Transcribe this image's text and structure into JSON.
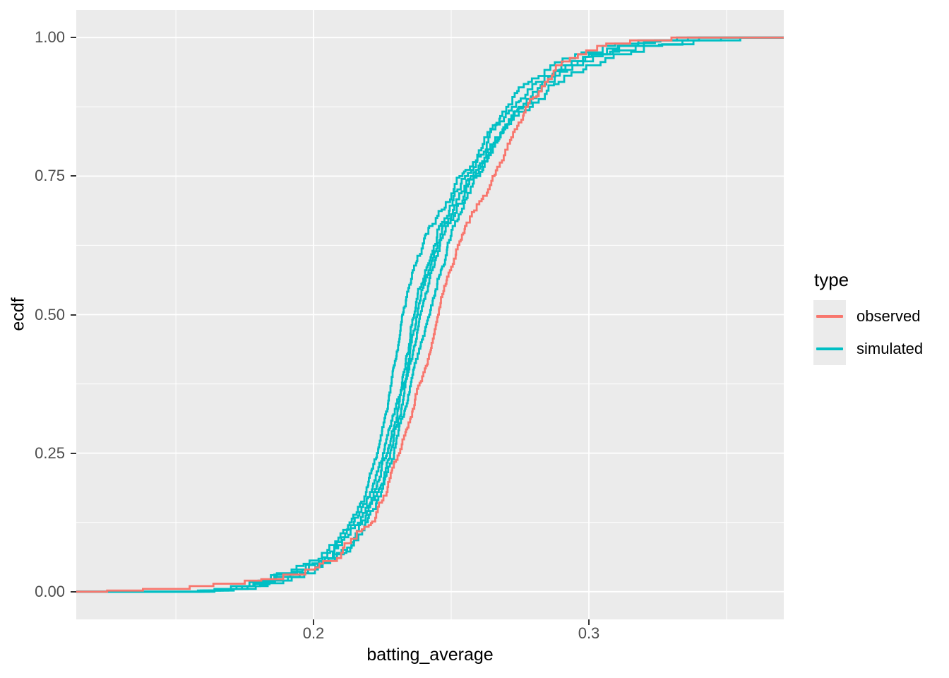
{
  "chart_data": {
    "type": "line",
    "style": "ecdf-step",
    "title": "",
    "x_axis": {
      "label": "batting_average",
      "major_ticks": [
        {
          "value": 0.2,
          "label": "0.2"
        },
        {
          "value": 0.3,
          "label": "0.3"
        }
      ],
      "minor_ticks": [
        0.15,
        0.25,
        0.35
      ]
    },
    "y_axis": {
      "label": "ecdf",
      "major_ticks": [
        {
          "value": 0.0,
          "label": "0.00"
        },
        {
          "value": 0.25,
          "label": "0.25"
        },
        {
          "value": 0.5,
          "label": "0.50"
        },
        {
          "value": 0.75,
          "label": "0.75"
        },
        {
          "value": 1.0,
          "label": "1.00"
        }
      ],
      "minor_ticks": [
        0.125,
        0.375,
        0.625,
        0.875
      ]
    },
    "xlim": [
      0.1138,
      0.3708
    ],
    "ylim": [
      -0.05,
      1.05
    ],
    "legend": {
      "title": "type",
      "position": "right",
      "entries": [
        {
          "label": "observed",
          "color": "#F8766D"
        },
        {
          "label": "simulated",
          "color": "#00BFC4"
        }
      ]
    },
    "layout": {
      "panel_background": "#EBEBEB",
      "grid_color": "#FFFFFF",
      "grid": "on",
      "tick_mark_color": "#333333",
      "tick_label_color": "#4D4D4D",
      "title_color": "#000000"
    },
    "ecdf_levels": [
      0.002,
      0.005,
      0.01,
      0.02,
      0.04,
      0.07,
      0.12,
      0.18,
      0.25,
      0.33,
      0.42,
      0.5,
      0.58,
      0.66,
      0.75,
      0.82,
      0.875,
      0.92,
      0.95,
      0.97,
      0.985,
      0.995,
      1.0
    ],
    "series": [
      {
        "name": "observed",
        "group": "observed",
        "color": "#F8766D",
        "points": [
          [
            0.125,
            0.002
          ],
          [
            0.138,
            0.005
          ],
          [
            0.155,
            0.01
          ],
          [
            0.175,
            0.02
          ],
          [
            0.197,
            0.04
          ],
          [
            0.21,
            0.07
          ],
          [
            0.22,
            0.12
          ],
          [
            0.2265,
            0.18
          ],
          [
            0.231,
            0.25
          ],
          [
            0.236,
            0.33
          ],
          [
            0.2415,
            0.42
          ],
          [
            0.2452,
            0.5
          ],
          [
            0.2495,
            0.58
          ],
          [
            0.255,
            0.66
          ],
          [
            0.265,
            0.75
          ],
          [
            0.2718,
            0.82
          ],
          [
            0.277,
            0.875
          ],
          [
            0.284,
            0.92
          ],
          [
            0.288,
            0.95
          ],
          [
            0.296,
            0.97
          ],
          [
            0.303,
            0.985
          ],
          [
            0.315,
            0.995
          ],
          [
            0.33,
            1.0
          ]
        ]
      },
      {
        "name": "simulated-1",
        "group": "simulated",
        "color": "#00BFC4",
        "points": [
          [
            0.158,
            0.002
          ],
          [
            0.164,
            0.005
          ],
          [
            0.17,
            0.01
          ],
          [
            0.18,
            0.02
          ],
          [
            0.192,
            0.04
          ],
          [
            0.203,
            0.07
          ],
          [
            0.2125,
            0.12
          ],
          [
            0.219,
            0.18
          ],
          [
            0.223,
            0.25
          ],
          [
            0.2268,
            0.33
          ],
          [
            0.2298,
            0.42
          ],
          [
            0.2322,
            0.5
          ],
          [
            0.236,
            0.58
          ],
          [
            0.242,
            0.66
          ],
          [
            0.253,
            0.75
          ],
          [
            0.262,
            0.82
          ],
          [
            0.27,
            0.875
          ],
          [
            0.278,
            0.92
          ],
          [
            0.286,
            0.95
          ],
          [
            0.295,
            0.97
          ],
          [
            0.305,
            0.985
          ],
          [
            0.318,
            0.995
          ],
          [
            0.332,
            1.0
          ]
        ]
      },
      {
        "name": "simulated-2",
        "group": "simulated",
        "color": "#00BFC4",
        "points": [
          [
            0.162,
            0.002
          ],
          [
            0.169,
            0.005
          ],
          [
            0.176,
            0.01
          ],
          [
            0.186,
            0.02
          ],
          [
            0.198,
            0.04
          ],
          [
            0.2085,
            0.07
          ],
          [
            0.2165,
            0.12
          ],
          [
            0.223,
            0.18
          ],
          [
            0.2278,
            0.25
          ],
          [
            0.2318,
            0.33
          ],
          [
            0.2356,
            0.42
          ],
          [
            0.2386,
            0.5
          ],
          [
            0.2428,
            0.58
          ],
          [
            0.248,
            0.66
          ],
          [
            0.258,
            0.75
          ],
          [
            0.266,
            0.82
          ],
          [
            0.2745,
            0.875
          ],
          [
            0.283,
            0.92
          ],
          [
            0.2915,
            0.95
          ],
          [
            0.301,
            0.97
          ],
          [
            0.311,
            0.985
          ],
          [
            0.326,
            0.995
          ],
          [
            0.34,
            1.0
          ]
        ]
      },
      {
        "name": "simulated-3",
        "group": "simulated",
        "color": "#00BFC4",
        "points": [
          [
            0.164,
            0.002
          ],
          [
            0.171,
            0.005
          ],
          [
            0.179,
            0.01
          ],
          [
            0.189,
            0.02
          ],
          [
            0.2005,
            0.04
          ],
          [
            0.211,
            0.07
          ],
          [
            0.2185,
            0.12
          ],
          [
            0.2245,
            0.18
          ],
          [
            0.2292,
            0.25
          ],
          [
            0.2332,
            0.33
          ],
          [
            0.2372,
            0.42
          ],
          [
            0.242,
            0.5
          ],
          [
            0.2462,
            0.58
          ],
          [
            0.2505,
            0.66
          ],
          [
            0.2592,
            0.75
          ],
          [
            0.2675,
            0.82
          ],
          [
            0.276,
            0.875
          ],
          [
            0.2845,
            0.92
          ],
          [
            0.294,
            0.95
          ],
          [
            0.305,
            0.97
          ],
          [
            0.317,
            0.985
          ],
          [
            0.334,
            0.995
          ],
          [
            0.348,
            1.0
          ]
        ]
      },
      {
        "name": "simulated-4",
        "group": "simulated",
        "color": "#00BFC4",
        "points": [
          [
            0.16,
            0.002
          ],
          [
            0.167,
            0.005
          ],
          [
            0.174,
            0.01
          ],
          [
            0.184,
            0.02
          ],
          [
            0.196,
            0.04
          ],
          [
            0.207,
            0.07
          ],
          [
            0.215,
            0.12
          ],
          [
            0.2218,
            0.18
          ],
          [
            0.2266,
            0.25
          ],
          [
            0.2306,
            0.33
          ],
          [
            0.2346,
            0.42
          ],
          [
            0.2376,
            0.5
          ],
          [
            0.2418,
            0.58
          ],
          [
            0.2468,
            0.66
          ],
          [
            0.257,
            0.75
          ],
          [
            0.2672,
            0.82
          ],
          [
            0.2785,
            0.875
          ],
          [
            0.289,
            0.92
          ],
          [
            0.299,
            0.95
          ],
          [
            0.309,
            0.97
          ],
          [
            0.32,
            0.985
          ],
          [
            0.338,
            0.995
          ],
          [
            0.355,
            1.0
          ]
        ]
      },
      {
        "name": "simulated-5",
        "group": "simulated",
        "color": "#00BFC4",
        "points": [
          [
            0.159,
            0.002
          ],
          [
            0.166,
            0.005
          ],
          [
            0.172,
            0.01
          ],
          [
            0.182,
            0.02
          ],
          [
            0.194,
            0.04
          ],
          [
            0.205,
            0.07
          ],
          [
            0.2135,
            0.12
          ],
          [
            0.2205,
            0.18
          ],
          [
            0.2252,
            0.25
          ],
          [
            0.2295,
            0.33
          ],
          [
            0.2335,
            0.42
          ],
          [
            0.2365,
            0.5
          ],
          [
            0.2405,
            0.58
          ],
          [
            0.2455,
            0.66
          ],
          [
            0.255,
            0.75
          ],
          [
            0.2635,
            0.82
          ],
          [
            0.272,
            0.875
          ],
          [
            0.2808,
            0.92
          ],
          [
            0.29,
            0.95
          ],
          [
            0.3,
            0.97
          ],
          [
            0.3105,
            0.985
          ],
          [
            0.324,
            0.995
          ],
          [
            0.336,
            1.0
          ]
        ]
      }
    ]
  }
}
